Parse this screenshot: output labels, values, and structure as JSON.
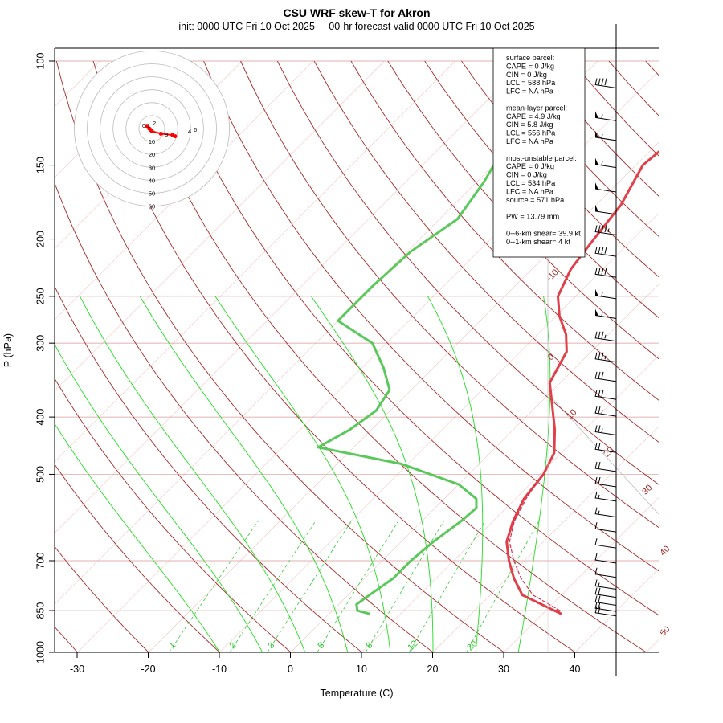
{
  "title": "CSU WRF skew-T for Akron",
  "subtitle": "init: 0000 UTC Fri 10 Oct 2025     00-hr forecast valid 0000 UTC Fri 10 Oct 2025",
  "colors": {
    "temperature": "#e0404a",
    "dewpoint": "#5ac85a",
    "parcel": "#d43050",
    "dry_adiabat": "#a52a2a",
    "moist_adiabat": "#22dd22",
    "mixing_ratio": "#33cc33",
    "isobar": "#d89999",
    "isotherm_grid": "#ebc4c4",
    "hodograph_trace": "#ff0000",
    "wind_barbs": "#000000"
  },
  "chart_data": {
    "type": "line",
    "chart_kind": "skew-T log-P diagram",
    "xlabel": "Temperature (C)",
    "ylabel": "P (hPa)",
    "x_ticks": [
      -30,
      -20,
      -10,
      0,
      10,
      20,
      30,
      40
    ],
    "y_ticks": [
      100,
      150,
      200,
      250,
      300,
      400,
      500,
      700,
      850,
      1000
    ],
    "y_scale": "log",
    "xlim": [
      -33,
      45
    ],
    "ylim": [
      1000,
      100
    ],
    "isotherm_labels": [
      -10,
      0,
      10,
      20,
      30,
      40,
      50
    ],
    "mixing_ratio_labels": [
      "1",
      "2",
      "3",
      "5",
      "8",
      "12",
      "20"
    ],
    "series": [
      {
        "key": "temperature",
        "points": [
          [
            850,
            31.5
          ],
          [
            860,
            32.5
          ],
          [
            800,
            24.5
          ],
          [
            750,
            21.0
          ],
          [
            700,
            17.8
          ],
          [
            650,
            14.8
          ],
          [
            600,
            12.8
          ],
          [
            550,
            11.2
          ],
          [
            500,
            10.5
          ],
          [
            460,
            9.0
          ],
          [
            420,
            5.8
          ],
          [
            380,
            1.8
          ],
          [
            350,
            -1.5
          ],
          [
            310,
            -3.5
          ],
          [
            290,
            -6.0
          ],
          [
            270,
            -9.5
          ],
          [
            250,
            -12.5
          ],
          [
            225,
            -14.5
          ],
          [
            200,
            -15.5
          ],
          [
            175,
            -16.5
          ],
          [
            150,
            -19.0
          ],
          [
            130,
            -18.0
          ],
          [
            115,
            -16.5
          ],
          [
            105,
            -16.0
          ]
        ]
      },
      {
        "key": "dewpoint",
        "points": [
          [
            860,
            5.5
          ],
          [
            850,
            3.5
          ],
          [
            830,
            2.5
          ],
          [
            800,
            3.0
          ],
          [
            750,
            4.0
          ],
          [
            700,
            4.0
          ],
          [
            650,
            4.5
          ],
          [
            600,
            5.5
          ],
          [
            570,
            5.8
          ],
          [
            550,
            4.5
          ],
          [
            520,
            0.0
          ],
          [
            480,
            -11.0
          ],
          [
            450,
            -25.0
          ],
          [
            420,
            -23.0
          ],
          [
            390,
            -22.0
          ],
          [
            360,
            -23.0
          ],
          [
            330,
            -27.0
          ],
          [
            300,
            -32.0
          ],
          [
            275,
            -40.0
          ],
          [
            240,
            -40.0
          ],
          [
            210,
            -39.5
          ],
          [
            185,
            -37.5
          ],
          [
            160,
            -39.0
          ],
          [
            140,
            -41.0
          ],
          [
            125,
            -42.5
          ],
          [
            110,
            -44.0
          ]
        ]
      },
      {
        "key": "parcel",
        "dashed": true,
        "points": [
          [
            850,
            32.0
          ],
          [
            800,
            26.0
          ],
          [
            750,
            22.0
          ],
          [
            700,
            18.5
          ],
          [
            650,
            15.2
          ],
          [
            600,
            13.0
          ],
          [
            550,
            11.5
          ],
          [
            520,
            10.8
          ]
        ]
      }
    ],
    "sounding_info": [
      "surface parcel:",
      "CAPE = 0 J/kg",
      "CIN = 0 J/kg",
      "LCL = 588 hPa",
      "LFC = NA hPa",
      "",
      "mean-layer parcel:",
      "CAPE = 4.9 J/kg",
      "CIN = 5.8 J/kg",
      "LCL = 556 hPa",
      "LFC = NA hPa",
      "",
      "most-unstable parcel:",
      "CAPE = 0 J/kg",
      "CIN = 0 J/kg",
      "LCL = 534 hPa",
      "LFC = NA hPa",
      "source = 571 hPa",
      "",
      "PW =  13.79 mm",
      "",
      "0--6-km shear= 39.9 kt",
      "0--1-km shear= 4 kt"
    ],
    "hodograph": {
      "ring_labels": [
        "10",
        "20",
        "30",
        "40",
        "50",
        "60"
      ],
      "point_labels": [
        "0",
        "1",
        "2",
        "3",
        "4",
        "6"
      ],
      "points_kt": [
        [
          -4,
          2
        ],
        [
          -2,
          0
        ],
        [
          -1,
          -1
        ],
        [
          0,
          -2
        ],
        [
          7,
          -4
        ],
        [
          16,
          -5
        ],
        [
          18,
          -6
        ]
      ]
    },
    "wind_barbs": {
      "levels_hpa": [
        110,
        125,
        135,
        150,
        165,
        180,
        195,
        212,
        230,
        250,
        270,
        295,
        320,
        345,
        370,
        395,
        425,
        455,
        490,
        520,
        550,
        585,
        620,
        660,
        700,
        740,
        775,
        800,
        825,
        845,
        860
      ],
      "speeds_kt": [
        40,
        55,
        55,
        55,
        50,
        50,
        45,
        40,
        40,
        55,
        55,
        35,
        35,
        30,
        30,
        25,
        25,
        20,
        20,
        20,
        15,
        15,
        10,
        10,
        10,
        10,
        15,
        20,
        20,
        20,
        20
      ]
    }
  }
}
